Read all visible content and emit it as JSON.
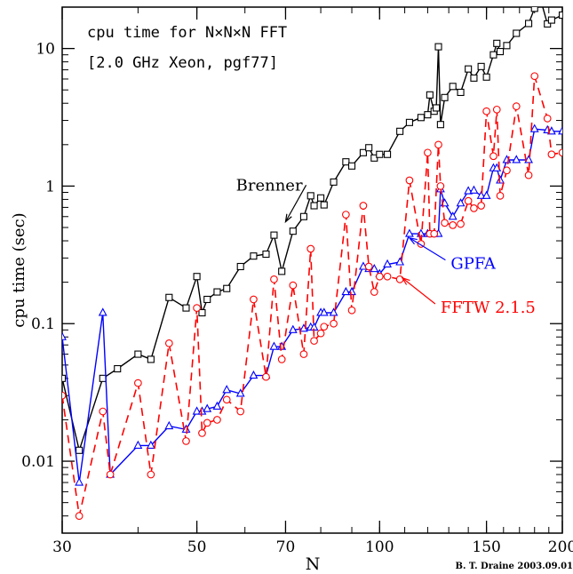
{
  "chart_data": {
    "type": "line",
    "title": "cpu time for N×N×N FFT",
    "subtitle": "[2.0 GHz Xeon, pgf77]",
    "xlabel": "N",
    "ylabel": "cpu time (sec)",
    "xscale": "log",
    "yscale": "log",
    "xlim": [
      30,
      200
    ],
    "ylim": [
      0.003,
      20
    ],
    "x_ticks": [
      30,
      50,
      70,
      100,
      150,
      200
    ],
    "y_ticks": [
      0.01,
      0.1,
      1,
      10
    ],
    "y_tick_labels": [
      "0.01",
      "0.1",
      "1",
      "10"
    ],
    "credit": "B. T. Draine 2003.09.01",
    "series": [
      {
        "name": "Brenner",
        "color": "#000000",
        "marker": "square",
        "linestyle": "solid",
        "points": [
          [
            30,
            0.04
          ],
          [
            32,
            0.012
          ],
          [
            35,
            0.04
          ],
          [
            37,
            0.047
          ],
          [
            40,
            0.06
          ],
          [
            42,
            0.055
          ],
          [
            45,
            0.155
          ],
          [
            48,
            0.13
          ],
          [
            50,
            0.22
          ],
          [
            51,
            0.12
          ],
          [
            52,
            0.15
          ],
          [
            54,
            0.17
          ],
          [
            56,
            0.18
          ],
          [
            59,
            0.26
          ],
          [
            62,
            0.31
          ],
          [
            65,
            0.32
          ],
          [
            67,
            0.44
          ],
          [
            69,
            0.24
          ],
          [
            72,
            0.47
          ],
          [
            75,
            0.6
          ],
          [
            77,
            0.85
          ],
          [
            78,
            0.72
          ],
          [
            80,
            0.82
          ],
          [
            81,
            0.73
          ],
          [
            84,
            1.07
          ],
          [
            88,
            1.5
          ],
          [
            90,
            1.4
          ],
          [
            94,
            1.75
          ],
          [
            96,
            1.9
          ],
          [
            98,
            1.6
          ],
          [
            100,
            1.7
          ],
          [
            103,
            1.7
          ],
          [
            108,
            2.5
          ],
          [
            112,
            2.9
          ],
          [
            117,
            3.15
          ],
          [
            120,
            3.3
          ],
          [
            121,
            4.6
          ],
          [
            123,
            3.5
          ],
          [
            124,
            3.7
          ],
          [
            125,
            10.3
          ],
          [
            126,
            2.8
          ],
          [
            128,
            4.4
          ],
          [
            132,
            5.3
          ],
          [
            136,
            4.8
          ],
          [
            140,
            7.1
          ],
          [
            143,
            6.1
          ],
          [
            147,
            7.4
          ],
          [
            150,
            6.2
          ],
          [
            154,
            9.0
          ],
          [
            156,
            10.9
          ],
          [
            158,
            9.5
          ],
          [
            162,
            10.5
          ],
          [
            168,
            12.9
          ],
          [
            176,
            15.2
          ],
          [
            180,
            19.6
          ],
          [
            184,
            23
          ],
          [
            189,
            15.1
          ],
          [
            192,
            16.1
          ],
          [
            200,
            17.5
          ]
        ]
      },
      {
        "name": "GPFA",
        "color": "#0000ff",
        "marker": "triangle",
        "linestyle": "solid",
        "points": [
          [
            30,
            0.08
          ],
          [
            32,
            0.007
          ],
          [
            35,
            0.12
          ],
          [
            36,
            0.008
          ],
          [
            40,
            0.013
          ],
          [
            42,
            0.013
          ],
          [
            45,
            0.018
          ],
          [
            48,
            0.017
          ],
          [
            50,
            0.023
          ],
          [
            51,
            0.023
          ],
          [
            52,
            0.024
          ],
          [
            54,
            0.025
          ],
          [
            56,
            0.033
          ],
          [
            59,
            0.031
          ],
          [
            62,
            0.042
          ],
          [
            65,
            0.042
          ],
          [
            67,
            0.068
          ],
          [
            69,
            0.068
          ],
          [
            72,
            0.09
          ],
          [
            75,
            0.092
          ],
          [
            77,
            0.094
          ],
          [
            78,
            0.094
          ],
          [
            80,
            0.12
          ],
          [
            81,
            0.12
          ],
          [
            84,
            0.12
          ],
          [
            88,
            0.17
          ],
          [
            90,
            0.17
          ],
          [
            94,
            0.26
          ],
          [
            96,
            0.25
          ],
          [
            98,
            0.25
          ],
          [
            100,
            0.23
          ],
          [
            103,
            0.27
          ],
          [
            108,
            0.28
          ],
          [
            112,
            0.45
          ],
          [
            117,
            0.45
          ],
          [
            120,
            0.45
          ],
          [
            121,
            0.45
          ],
          [
            123,
            0.45
          ],
          [
            125,
            0.45
          ],
          [
            126,
            0.95
          ],
          [
            128,
            0.75
          ],
          [
            132,
            0.6
          ],
          [
            136,
            0.75
          ],
          [
            140,
            0.92
          ],
          [
            143,
            0.93
          ],
          [
            147,
            0.85
          ],
          [
            150,
            0.85
          ],
          [
            154,
            1.35
          ],
          [
            156,
            1.35
          ],
          [
            158,
            1.1
          ],
          [
            162,
            1.55
          ],
          [
            168,
            1.55
          ],
          [
            176,
            1.55
          ],
          [
            180,
            2.6
          ],
          [
            189,
            2.55
          ],
          [
            192,
            2.5
          ],
          [
            200,
            2.5
          ]
        ]
      },
      {
        "name": "FFTW 2.1.5",
        "color": "#ff0000",
        "marker": "circle",
        "linestyle": "dashed",
        "points": [
          [
            30,
            0.03
          ],
          [
            32,
            0.004
          ],
          [
            35,
            0.023
          ],
          [
            36,
            0.008
          ],
          [
            40,
            0.037
          ],
          [
            42,
            0.008
          ],
          [
            45,
            0.072
          ],
          [
            48,
            0.014
          ],
          [
            50,
            0.13
          ],
          [
            51,
            0.016
          ],
          [
            52,
            0.019
          ],
          [
            54,
            0.02
          ],
          [
            56,
            0.028
          ],
          [
            59,
            0.023
          ],
          [
            62,
            0.15
          ],
          [
            65,
            0.041
          ],
          [
            67,
            0.21
          ],
          [
            69,
            0.055
          ],
          [
            72,
            0.19
          ],
          [
            75,
            0.06
          ],
          [
            77,
            0.35
          ],
          [
            78,
            0.075
          ],
          [
            80,
            0.085
          ],
          [
            81,
            0.095
          ],
          [
            84,
            0.1
          ],
          [
            88,
            0.62
          ],
          [
            90,
            0.125
          ],
          [
            94,
            0.72
          ],
          [
            96,
            0.26
          ],
          [
            98,
            0.17
          ],
          [
            100,
            0.22
          ],
          [
            103,
            0.22
          ],
          [
            108,
            0.21
          ],
          [
            112,
            1.1
          ],
          [
            117,
            0.38
          ],
          [
            120,
            1.75
          ],
          [
            121,
            0.45
          ],
          [
            123,
            0.45
          ],
          [
            125,
            2.0
          ],
          [
            126,
            1.0
          ],
          [
            128,
            0.54
          ],
          [
            132,
            0.52
          ],
          [
            136,
            0.53
          ],
          [
            140,
            0.78
          ],
          [
            143,
            0.69
          ],
          [
            147,
            0.72
          ],
          [
            150,
            3.5
          ],
          [
            154,
            1.65
          ],
          [
            156,
            3.6
          ],
          [
            158,
            0.85
          ],
          [
            162,
            1.3
          ],
          [
            168,
            3.8
          ],
          [
            176,
            1.2
          ],
          [
            180,
            6.3
          ],
          [
            189,
            3.1
          ],
          [
            192,
            1.7
          ],
          [
            200,
            1.75
          ]
        ]
      }
    ],
    "annotations": [
      {
        "text": "Brenner",
        "color": "#000000",
        "label_x": 58,
        "label_y": 0.93,
        "arrow_to_x": 70,
        "arrow_to_y": 0.55
      },
      {
        "text": "GPFA",
        "color": "#0000ff",
        "label_x": 131,
        "label_y": 0.25,
        "arrow_to_x": 112,
        "arrow_to_y": 0.42
      },
      {
        "text": "FFTW 2.1.5",
        "color": "#ff0000",
        "label_x": 126,
        "label_y": 0.12,
        "arrow_to_x": 109,
        "arrow_to_y": 0.215
      }
    ]
  }
}
